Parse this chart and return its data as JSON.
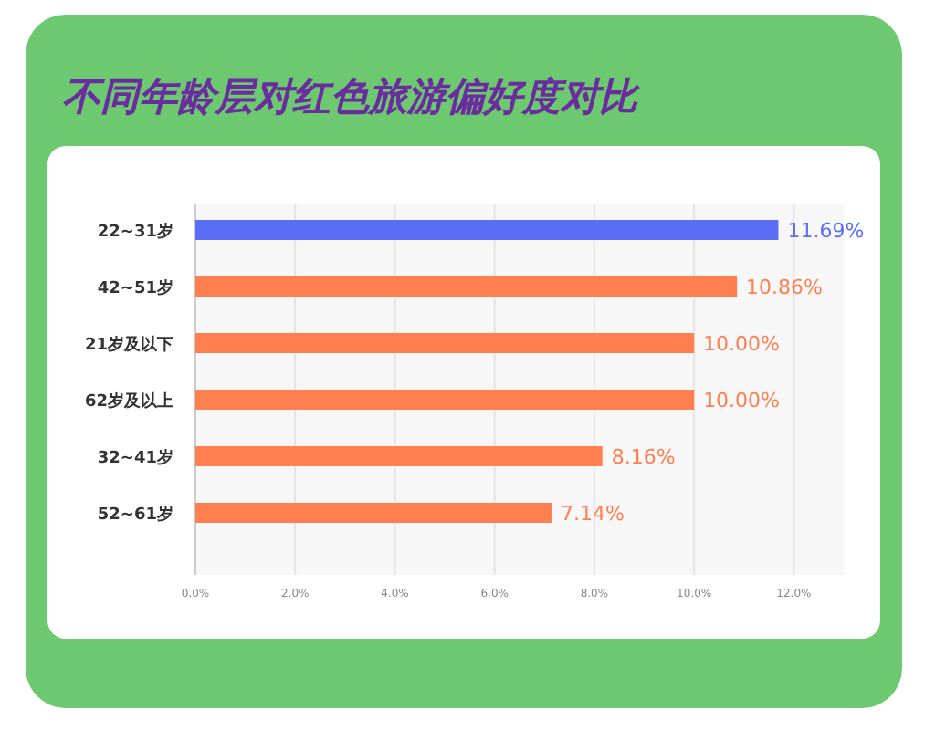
{
  "chart_data": {
    "type": "bar",
    "orientation": "horizontal",
    "title": "不同年龄层对红色旅游偏好度对比",
    "categories": [
      "22~31岁",
      "42~51岁",
      "21岁及以下",
      "62岁及以上",
      "32~41岁",
      "52~61岁"
    ],
    "values": [
      11.69,
      10.86,
      10.0,
      10.0,
      8.16,
      7.14
    ],
    "value_labels": [
      "11.69%",
      "10.86%",
      "10.00%",
      "10.00%",
      "8.16%",
      "7.14%"
    ],
    "colors": [
      "#5b6ef5",
      "#ff7f50",
      "#ff7f50",
      "#ff7f50",
      "#ff7f50",
      "#ff7f50"
    ],
    "xlim": [
      0,
      13
    ],
    "xticks": [
      {
        "value": 0,
        "label": "0.0%"
      },
      {
        "value": 2,
        "label": "2.0%"
      },
      {
        "value": 4,
        "label": "4.0%"
      },
      {
        "value": 6,
        "label": "6.0%"
      },
      {
        "value": 8,
        "label": "8.0%"
      },
      {
        "value": 10,
        "label": "10.0%"
      },
      {
        "value": 12,
        "label": "12.0%"
      }
    ],
    "grid": "x"
  }
}
